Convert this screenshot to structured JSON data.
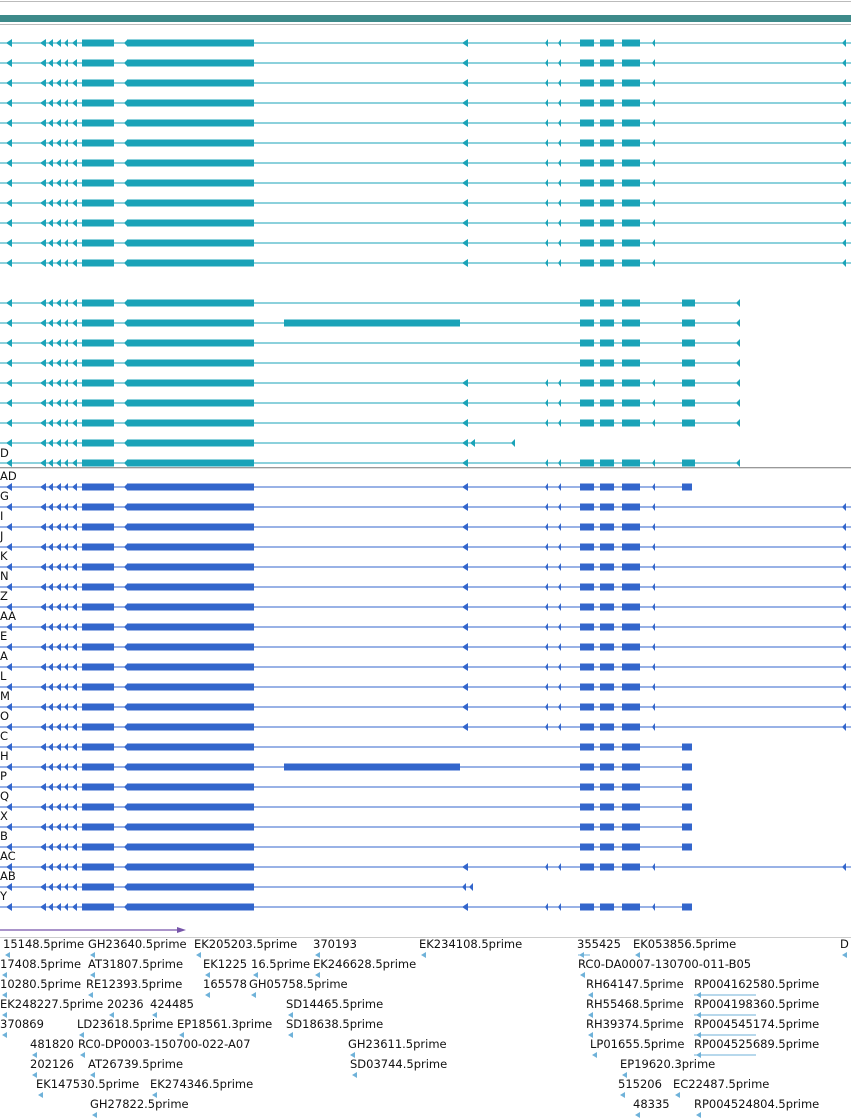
{
  "colors": {
    "header_bar": "#3d8a8a",
    "track1_transcript": "#1aa3b8",
    "track2_cds": "#3366cc",
    "est_arrow": "#6fb2d9",
    "scale_arrow": "#7755aa",
    "separator": "#999999"
  },
  "track1_labels": [
    "D"
  ],
  "track2_labels": [
    "AD",
    "G",
    "I",
    "J",
    "K",
    "N",
    "Z",
    "AA",
    "E",
    "A",
    "L",
    "M",
    "O",
    "C",
    "H",
    "P",
    "Q",
    "X",
    "B",
    "AC",
    "AB",
    "Y"
  ],
  "est_labels": [
    "15148.5prime",
    "GH23640.5prime",
    "EK205203.5prime",
    "370193",
    "EK234108.5prime",
    "355425",
    "EK053856.5prime",
    "D",
    "17408.5prime",
    "AT31807.5prime",
    "EK1225",
    "16.5prime",
    "EK246628.5prime",
    "RC0-DA0007-130700-011-B05",
    "10280.5prime",
    "RE12393.5prime",
    "165578",
    "GH05758.5prime",
    "RH64147.5prime",
    "RP004162580.5prime",
    "EK248227.5prime",
    "20236",
    "424485",
    "SD14465.5prime",
    "RH55468.5prime",
    "RP004198360.5prime",
    "370869",
    "LD23618.5prime",
    "EP18561.3prime",
    "SD18638.5prime",
    "RH39374.5prime",
    "RP004545174.5prime",
    "481820",
    "RC0-DP0003-150700-022-A07",
    "GH23611.5prime",
    "LP01655.5prime",
    "RP004525689.5prime",
    "202126",
    "AT26739.5prime",
    "SD03744.5prime",
    "EP19620.3prime",
    "EK147530.5prime",
    "EK274346.5prime",
    "515206",
    "EC22487.5prime",
    "GH27822.5prime",
    "48335",
    "RP004524804.5prime"
  ]
}
